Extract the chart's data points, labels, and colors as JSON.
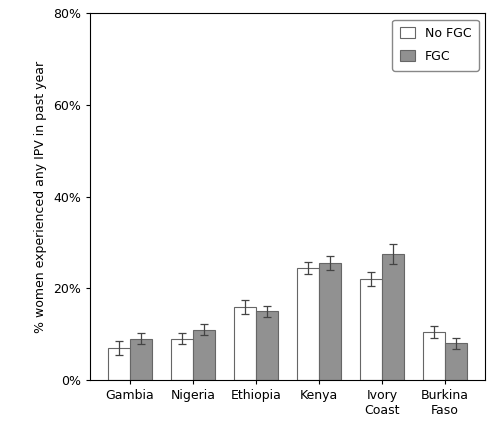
{
  "categories": [
    "Gambia",
    "Nigeria",
    "Ethiopia",
    "Kenya",
    "Ivory\nCoast",
    "Burkina\nFaso"
  ],
  "no_fgc_values": [
    0.07,
    0.09,
    0.16,
    0.245,
    0.22,
    0.105
  ],
  "fgc_values": [
    0.09,
    0.11,
    0.15,
    0.255,
    0.275,
    0.08
  ],
  "no_fgc_errors": [
    0.015,
    0.012,
    0.015,
    0.013,
    0.015,
    0.013
  ],
  "fgc_errors": [
    0.012,
    0.012,
    0.012,
    0.015,
    0.022,
    0.012
  ],
  "no_fgc_color": "#ffffff",
  "fgc_color": "#919191",
  "bar_edge_color": "#666666",
  "ylabel": "% women experienced any IPV in past year",
  "ylim": [
    0,
    0.8
  ],
  "yticks": [
    0.0,
    0.2,
    0.4,
    0.6,
    0.8
  ],
  "ytick_labels": [
    "0%",
    "20%",
    "40%",
    "60%",
    "80%"
  ],
  "legend_labels": [
    "No FGC",
    "FGC"
  ],
  "bar_width": 0.35,
  "figure_width": 5.0,
  "figure_height": 4.47
}
